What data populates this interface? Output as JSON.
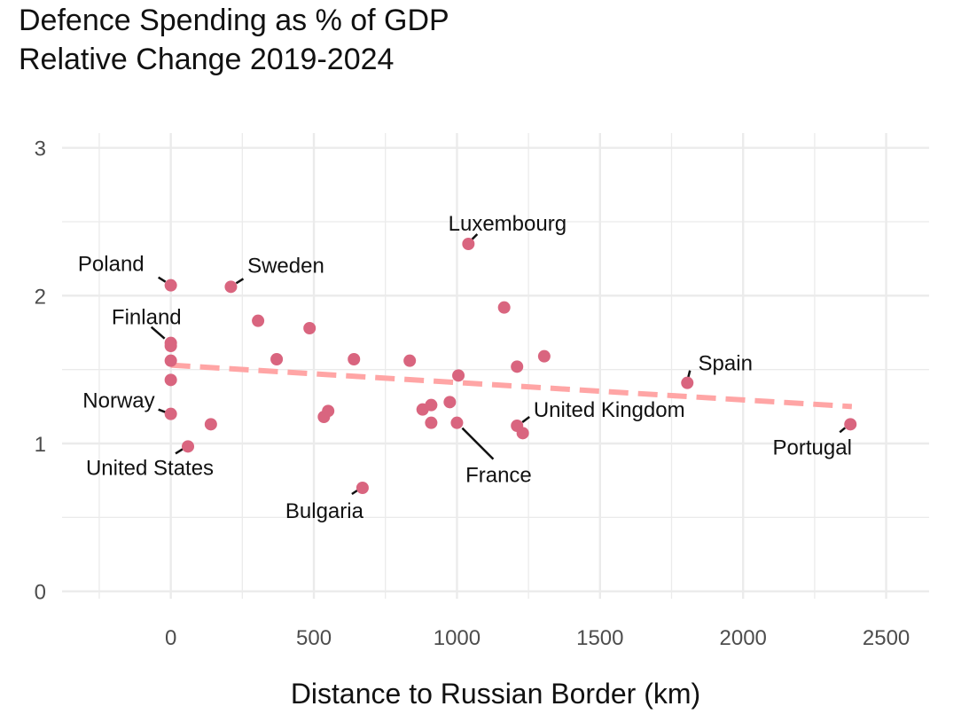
{
  "title_line1": "Defence Spending as % of GDP",
  "title_line2": "Relative Change 2019-2024",
  "colors": {
    "point": "#d9657f",
    "trend": "#ffa5a5",
    "grid": "#ebebeb"
  },
  "chart_data": {
    "type": "scatter",
    "title": "Defence Spending as % of GDP\nRelative Change 2019-2024",
    "xlabel": "Distance to Russian Border (km)",
    "ylabel": "",
    "xlim": [
      -380,
      2650
    ],
    "ylim": [
      -0.05,
      3.1
    ],
    "x_ticks": [
      0,
      500,
      1000,
      1500,
      2000,
      2500
    ],
    "y_ticks": [
      0,
      1,
      2,
      3
    ],
    "grid": true,
    "legend": "none",
    "trend_line": {
      "style": "dashed",
      "x": [
        0,
        2380
      ],
      "y": [
        1.53,
        1.25
      ]
    },
    "points": [
      {
        "x": 0,
        "y": 2.07,
        "label": "Poland"
      },
      {
        "x": 210,
        "y": 2.06,
        "label": "Sweden"
      },
      {
        "x": 0,
        "y": 1.68,
        "label": "Finland"
      },
      {
        "x": 0,
        "y": 1.66,
        "label": ""
      },
      {
        "x": 0,
        "y": 1.56,
        "label": ""
      },
      {
        "x": 0,
        "y": 1.43,
        "label": ""
      },
      {
        "x": 0,
        "y": 1.2,
        "label": "Norway"
      },
      {
        "x": 60,
        "y": 0.98,
        "label": "United States"
      },
      {
        "x": 140,
        "y": 1.13,
        "label": ""
      },
      {
        "x": 305,
        "y": 1.83,
        "label": ""
      },
      {
        "x": 370,
        "y": 1.57,
        "label": ""
      },
      {
        "x": 485,
        "y": 1.78,
        "label": ""
      },
      {
        "x": 535,
        "y": 1.18,
        "label": ""
      },
      {
        "x": 550,
        "y": 1.22,
        "label": ""
      },
      {
        "x": 640,
        "y": 1.57,
        "label": ""
      },
      {
        "x": 670,
        "y": 0.7,
        "label": "Bulgaria"
      },
      {
        "x": 835,
        "y": 1.56,
        "label": ""
      },
      {
        "x": 880,
        "y": 1.23,
        "label": ""
      },
      {
        "x": 910,
        "y": 1.26,
        "label": ""
      },
      {
        "x": 910,
        "y": 1.14,
        "label": ""
      },
      {
        "x": 975,
        "y": 1.28,
        "label": ""
      },
      {
        "x": 1000,
        "y": 1.14,
        "label": "France"
      },
      {
        "x": 1005,
        "y": 1.46,
        "label": ""
      },
      {
        "x": 1040,
        "y": 2.35,
        "label": "Luxembourg"
      },
      {
        "x": 1165,
        "y": 1.92,
        "label": ""
      },
      {
        "x": 1210,
        "y": 1.52,
        "label": ""
      },
      {
        "x": 1210,
        "y": 1.12,
        "label": "United Kingdom"
      },
      {
        "x": 1230,
        "y": 1.07,
        "label": ""
      },
      {
        "x": 1305,
        "y": 1.59,
        "label": ""
      },
      {
        "x": 1805,
        "y": 1.41,
        "label": "Spain"
      },
      {
        "x": 2375,
        "y": 1.13,
        "label": "Portugal"
      }
    ]
  }
}
